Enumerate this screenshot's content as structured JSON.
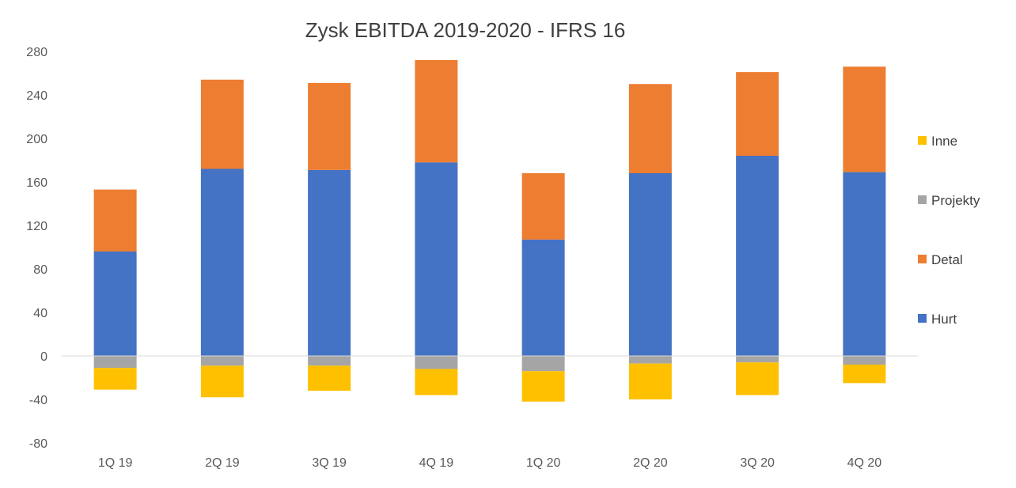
{
  "chart_data": {
    "type": "bar",
    "stacked": true,
    "title": "Zysk EBITDA 2019-2020 - IFRS 16",
    "xlabel": "",
    "ylabel": "",
    "ylim": [
      -80,
      280
    ],
    "yticks": [
      280,
      240,
      200,
      160,
      120,
      80,
      40,
      0,
      -40,
      -80
    ],
    "categories": [
      "1Q 19",
      "2Q 19",
      "3Q 19",
      "4Q 19",
      "1Q 20",
      "2Q 20",
      "3Q 20",
      "4Q 20"
    ],
    "series": [
      {
        "name": "Hurt",
        "color": "#4472C4",
        "values": [
          96,
          172,
          171,
          178,
          107,
          168,
          184,
          169
        ]
      },
      {
        "name": "Detal",
        "color": "#ED7D31",
        "values": [
          57,
          82,
          80,
          94,
          61,
          82,
          77,
          97
        ]
      },
      {
        "name": "Projekty",
        "color": "#A5A5A5",
        "values": [
          -11,
          -9,
          -9,
          -12,
          -14,
          -7,
          -6,
          -8
        ]
      },
      {
        "name": "Inne",
        "color": "#FFC000",
        "values": [
          -20,
          -29,
          -23,
          -24,
          -28,
          -33,
          -30,
          -17
        ]
      }
    ],
    "legend": {
      "position": "right",
      "order": [
        "Inne",
        "Projekty",
        "Detal",
        "Hurt"
      ]
    },
    "grid": false
  }
}
